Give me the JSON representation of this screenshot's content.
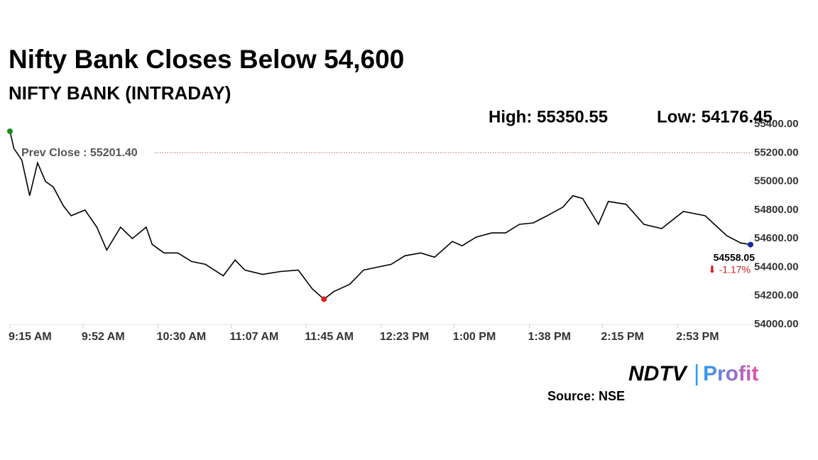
{
  "chart_data": {
    "type": "line",
    "title": "Nifty Bank Closes Below 54,600",
    "subtitle": "NIFTY BANK (INTRADAY)",
    "high_label": "High: 55350.55",
    "low_label": "Low: 54176.45",
    "prev_close": {
      "value": 55201.4,
      "label": "Prev Close : 55201.40"
    },
    "last_label": "54558.05",
    "change_label": "⬇ -1.17%",
    "source": "Source: NSE",
    "logo": {
      "brand": "NDTV",
      "separator": "|",
      "product": "Profit"
    },
    "x": [
      "9:15 AM",
      "9:17 AM",
      "9:21 AM",
      "9:25 AM",
      "9:29 AM",
      "9:33 AM",
      "9:37 AM",
      "9:42 AM",
      "9:46 AM",
      "9:53 AM",
      "9:59 AM",
      "10:04 AM",
      "10:11 AM",
      "10:17 AM",
      "10:24 AM",
      "10:27 AM",
      "10:33 AM",
      "10:40 AM",
      "10:47 AM",
      "10:54 AM",
      "11:03 AM",
      "11:09 AM",
      "11:14 AM",
      "11:23 AM",
      "11:32 AM",
      "11:41 AM",
      "11:48 AM",
      "11:54 AM",
      "11:59 AM",
      "12:07 PM",
      "12:14 PM",
      "12:21 PM",
      "12:28 PM",
      "12:35 PM",
      "12:43 PM",
      "12:50 PM",
      "12:59 PM",
      "1:04 PM",
      "1:11 PM",
      "1:19 PM",
      "1:26 PM",
      "1:33 PM",
      "1:40 PM",
      "1:47 PM",
      "1:55 PM",
      "2:00 PM",
      "2:05 PM",
      "2:13 PM",
      "2:18 PM",
      "2:27 PM",
      "2:36 PM",
      "2:45 PM",
      "2:56 PM",
      "3:07 PM",
      "3:18 PM",
      "3:25 PM",
      "3:30 PM"
    ],
    "series": [
      {
        "name": "NIFTY BANK",
        "color": "#000000",
        "values": [
          55350.55,
          55230,
          55150,
          54900,
          55130,
          55000,
          54960,
          54830,
          54760,
          54800,
          54680,
          54520,
          54680,
          54600,
          54680,
          54560,
          54500,
          54500,
          54440,
          54420,
          54340,
          54450,
          54380,
          54350,
          54370,
          54380,
          54250,
          54176.45,
          54230,
          54280,
          54380,
          54400,
          54420,
          54480,
          54500,
          54470,
          54580,
          54550,
          54610,
          54640,
          54640,
          54700,
          54710,
          54760,
          54820,
          54900,
          54880,
          54700,
          54860,
          54840,
          54700,
          54670,
          54790,
          54760,
          54620,
          54570,
          54558.05
        ]
      }
    ],
    "marker_colors": [
      "#1a8a1a",
      "#e02020",
      "#1a2a9a"
    ],
    "xlim": [
      "9:15 AM",
      "3:30 PM"
    ],
    "xticks": [
      "9:15 AM",
      "9:52 AM",
      "10:30 AM",
      "11:07 AM",
      "11:45 AM",
      "12:23 PM",
      "1:00 PM",
      "1:38 PM",
      "2:15 PM",
      "2:53 PM"
    ],
    "ylim": [
      54000,
      55400
    ],
    "yticks": [
      {
        "value": 54000,
        "label": "54000.00"
      },
      {
        "value": 54200,
        "label": "54200.00"
      },
      {
        "value": 54400,
        "label": "54400.00"
      },
      {
        "value": 54600,
        "label": "54600.00"
      },
      {
        "value": 54800,
        "label": "54800.00"
      },
      {
        "value": 55000,
        "label": "55000.00"
      },
      {
        "value": 55200,
        "label": "55200.00"
      },
      {
        "value": 55400,
        "label": "55400.00"
      }
    ]
  }
}
